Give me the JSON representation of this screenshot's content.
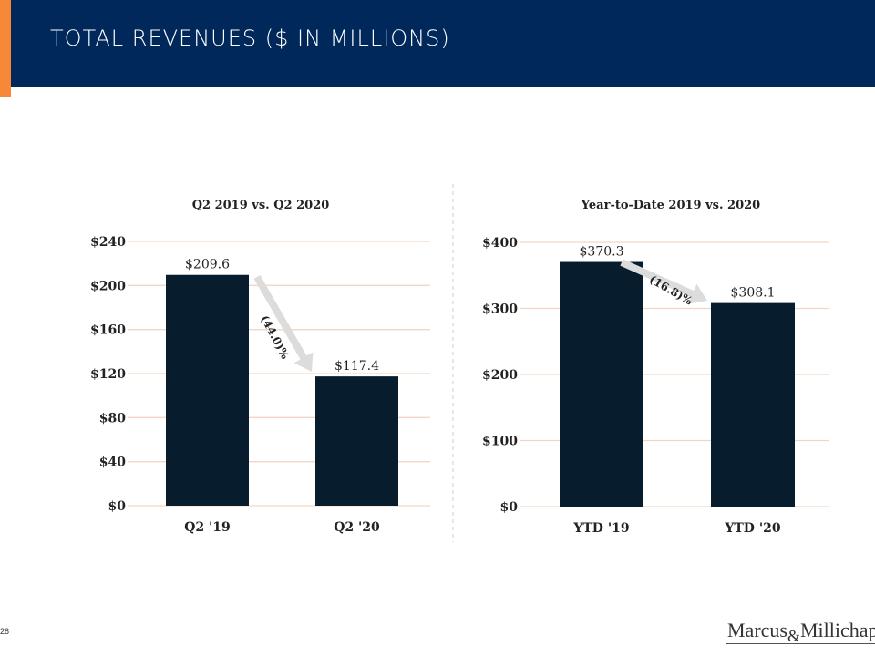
{
  "header": {
    "title": "TOTAL REVENUES ($ IN MILLIONS)"
  },
  "footer": {
    "page_number": "28",
    "logo_text": "Marcus & Millichap"
  },
  "colors": {
    "header": "#00285a",
    "accent": "#f7883a",
    "bar": "#071d2d",
    "grid": "#f2d6c4",
    "arrow": "#dcdcdc"
  },
  "chart_data": [
    {
      "type": "bar",
      "title": "Q2 2019 vs. Q2 2020",
      "categories": [
        "Q2 '19",
        "Q2 '20"
      ],
      "values": [
        209.6,
        117.4
      ],
      "value_labels": [
        "$209.6",
        "$117.4"
      ],
      "ylim": [
        0,
        240
      ],
      "yticks": [
        0,
        40,
        80,
        120,
        160,
        200,
        240
      ],
      "ytick_labels": [
        "$0",
        "$40",
        "$80",
        "$120",
        "$160",
        "$200",
        "$240"
      ],
      "annotation": "(44.0)%",
      "grid": true
    },
    {
      "type": "bar",
      "title": "Year-to-Date 2019 vs. 2020",
      "categories": [
        "YTD '19",
        "YTD '20"
      ],
      "values": [
        370.3,
        308.1
      ],
      "value_labels": [
        "$370.3",
        "$308.1"
      ],
      "ylim": [
        0,
        400
      ],
      "yticks": [
        0,
        100,
        200,
        300,
        400
      ],
      "ytick_labels": [
        "$0",
        "$100",
        "$200",
        "$300",
        "$400"
      ],
      "annotation": "(16.8)%",
      "grid": true
    }
  ]
}
